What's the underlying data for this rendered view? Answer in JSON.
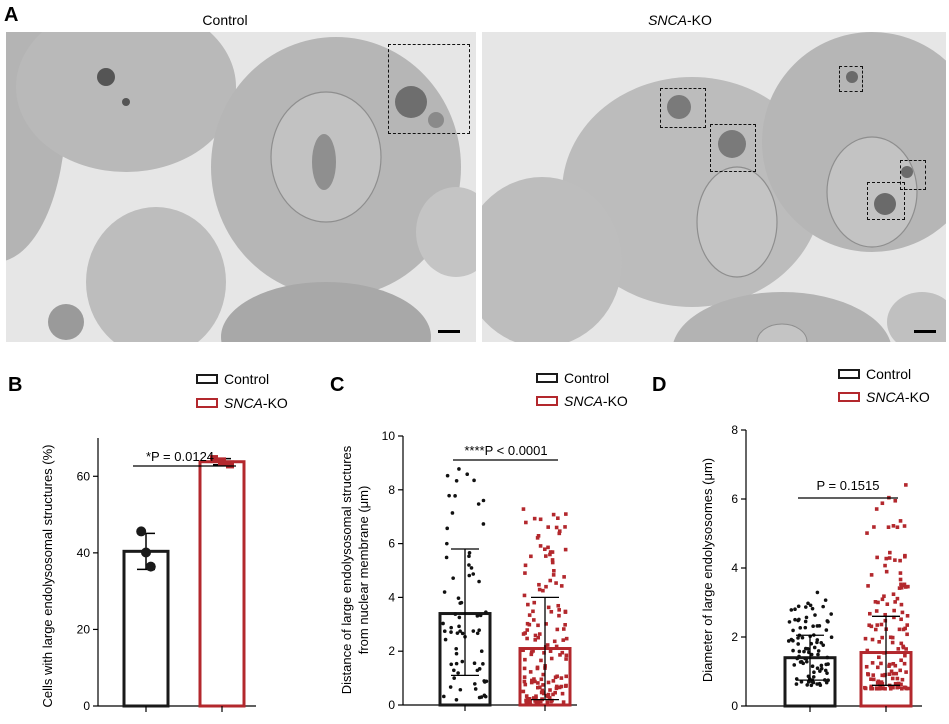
{
  "panel_labels": {
    "a": "A",
    "b": "B",
    "c": "C",
    "d": "D"
  },
  "micrographs": {
    "left_title": "Control",
    "right_title_italic": "SNCA",
    "right_title_suffix": "-KO"
  },
  "legend": {
    "control": "Control",
    "ko_italic": "SNCA",
    "ko_suffix": "-KO"
  },
  "colors": {
    "control": "#1a1a1a",
    "ko": "#b3282d",
    "micro_bg": "#e6e6e6",
    "cell": "#b9b9b9",
    "cell_dark": "#a3a3a3"
  },
  "chart_data": [
    {
      "type": "bar",
      "categories": [
        "Control",
        "SNCA-KO"
      ],
      "values": [
        40.4,
        63.8
      ],
      "error": [
        4.7,
        0.8
      ],
      "points": [
        [
          45.6,
          40.1,
          36.4
        ],
        [
          64.5,
          63.9,
          63.1
        ]
      ],
      "ylabel": "Cells with large endolysosomal structures (%)",
      "ylim": [
        0,
        70
      ],
      "yticks": [
        0,
        20,
        40,
        60
      ],
      "annotation": "*P = 0.0124"
    },
    {
      "type": "bar",
      "categories": [
        "Control",
        "SNCA-KO"
      ],
      "values": [
        3.4,
        2.1
      ],
      "error_low": [
        1.1,
        0.2
      ],
      "error_high": [
        5.8,
        4.0
      ],
      "ylabel_line1": "Distance of large endolysosomal structures",
      "ylabel_line2": "from nuclear membrane (μm)",
      "ylim": [
        0,
        10
      ],
      "yticks": [
        0,
        2,
        4,
        6,
        8,
        10
      ],
      "annotation": "****P < 0.0001"
    },
    {
      "type": "bar",
      "categories": [
        "Control",
        "SNCA-KO"
      ],
      "values": [
        1.4,
        1.55
      ],
      "error_low": [
        0.75,
        0.6
      ],
      "error_high": [
        2.05,
        2.6
      ],
      "ylabel": "Diameter of large endolysosomes (μm)",
      "ylim": [
        0,
        8
      ],
      "yticks": [
        0,
        2,
        4,
        6,
        8
      ],
      "annotation": "P = 0.1515"
    }
  ]
}
